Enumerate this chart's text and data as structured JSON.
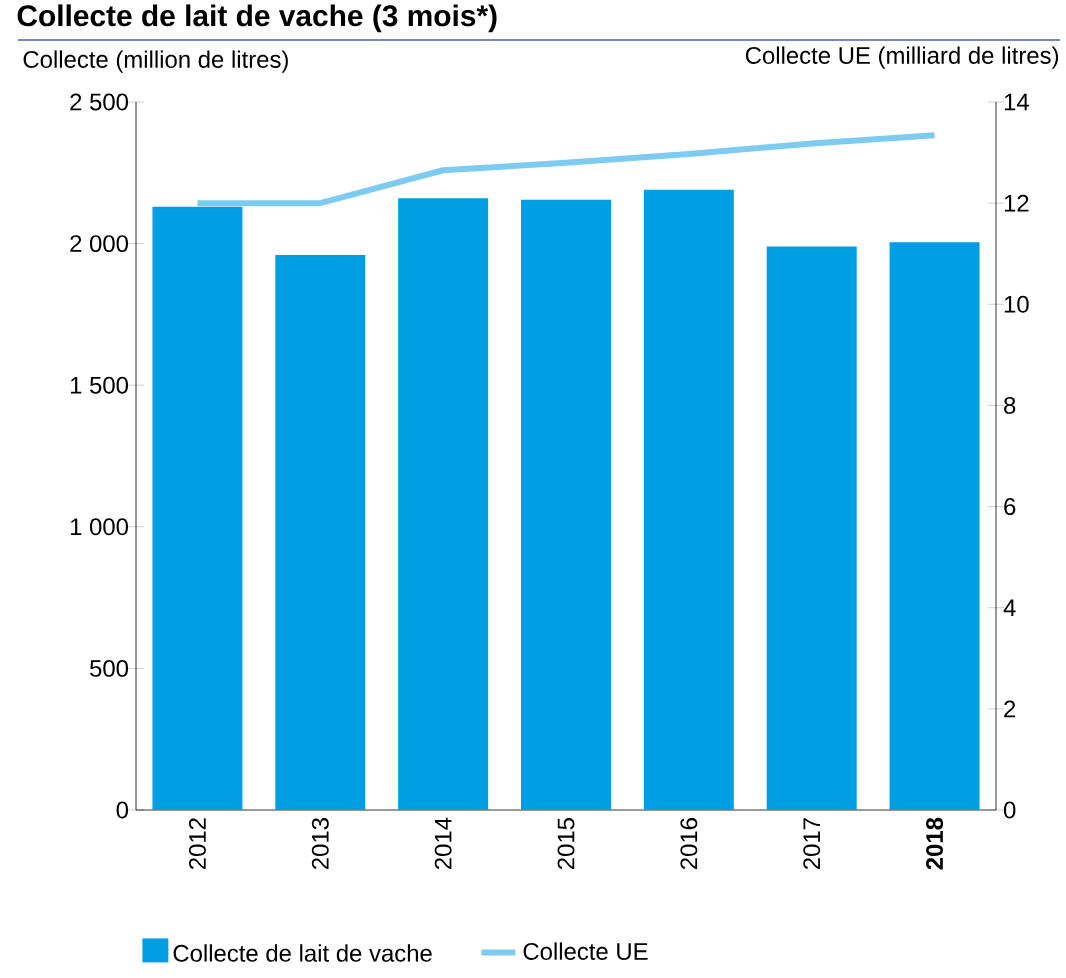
{
  "chart_data": {
    "type": "bar",
    "title": "Collecte de lait de vache (3 mois*)",
    "ylabel": "Collecte (million de litres)",
    "y2label": "Collecte UE (milliard de litres)",
    "categories": [
      "2012",
      "2013",
      "2014",
      "2015",
      "2016",
      "2017",
      "**2018**"
    ],
    "series": [
      {
        "name": "Collecte de lait de vache",
        "color": "#009fe3",
        "values": [
          2130,
          1960,
          2160,
          2155,
          2190,
          1990,
          2005
        ]
      },
      {
        "name": "Collecte UE",
        "type": "line",
        "axis": "y2",
        "color": "#7dcbf0",
        "values": [
          12.0,
          12.0,
          12.65,
          12.8,
          12.97,
          13.18,
          13.34
        ]
      }
    ],
    "ylim": [
      0,
      2500
    ],
    "yticks": [
      0,
      500,
      {
        "value": 1000,
        "label": "1 000"
      },
      {
        "value": 1500,
        "label": "1 500"
      },
      {
        "value": 2000,
        "label": "2 000"
      },
      {
        "value": 2500,
        "label": "2 500"
      }
    ],
    "y2lim": [
      0,
      14
    ],
    "y2ticks": [
      0,
      2,
      4,
      6,
      8,
      10,
      12,
      14
    ],
    "grid": false,
    "legend": "bottom left",
    "marker": "none",
    "line_style": "solid"
  }
}
